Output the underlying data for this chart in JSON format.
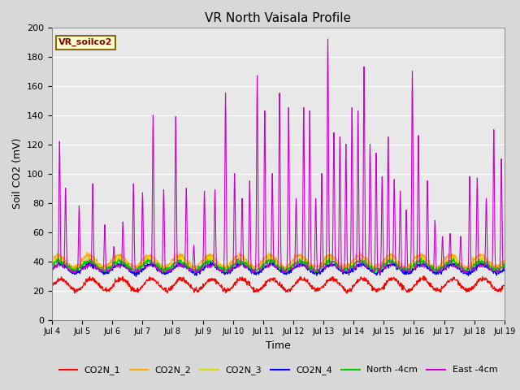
{
  "title": "VR North Vaisala Profile",
  "xlabel": "Time",
  "ylabel": "Soil CO2 (mV)",
  "annotation": "VR_soilco2",
  "ylim": [
    0,
    200
  ],
  "yticks": [
    0,
    20,
    40,
    60,
    80,
    100,
    120,
    140,
    160,
    180,
    200
  ],
  "xtick_labels": [
    "Jul 4",
    "Jul 5",
    "Jul 6",
    "Jul 7",
    "Jul 8",
    "Jul 9",
    "Jul 10",
    "Jul 11",
    "Jul 12",
    "Jul 13",
    "Jul 14",
    "Jul 15",
    "Jul 16",
    "Jul 17",
    "Jul 18",
    "Jul 19"
  ],
  "line_colors": {
    "CO2N_1": "#ff0000",
    "CO2N_2": "#ffaa00",
    "CO2N_3": "#dddd00",
    "CO2N_4": "#0000ff",
    "North_4cm": "#00cc00",
    "East_4cm": "#cc00cc"
  },
  "fig_bg": "#d8d8d8",
  "plot_bg": "#e8e8e8",
  "grid_color": "#ffffff",
  "n_points": 1500,
  "spike_times": [
    0.25,
    0.45,
    0.9,
    1.35,
    1.75,
    2.05,
    2.35,
    2.7,
    3.0,
    3.35,
    3.7,
    4.1,
    4.45,
    4.7,
    5.05,
    5.4,
    5.75,
    6.05,
    6.3,
    6.55,
    6.8,
    7.05,
    7.3,
    7.55,
    7.85,
    8.1,
    8.35,
    8.55,
    8.75,
    8.95,
    9.15,
    9.35,
    9.55,
    9.75,
    9.95,
    10.15,
    10.35,
    10.55,
    10.75,
    10.95,
    11.15,
    11.35,
    11.55,
    11.75,
    11.95,
    12.15,
    12.45,
    12.7,
    12.95,
    13.2,
    13.55,
    13.85,
    14.1,
    14.4,
    14.65,
    14.9
  ],
  "spike_heights": [
    122,
    90,
    78,
    93,
    65,
    50,
    67,
    93,
    87,
    140,
    89,
    139,
    90,
    51,
    88,
    89,
    155,
    100,
    83,
    95,
    167,
    143,
    100,
    155,
    145,
    83,
    145,
    143,
    83,
    100,
    192,
    128,
    125,
    120,
    145,
    143,
    173,
    120,
    114,
    98,
    125,
    96,
    88,
    75,
    170,
    126,
    95,
    68,
    57,
    59,
    57,
    98,
    97,
    83,
    130,
    110
  ]
}
